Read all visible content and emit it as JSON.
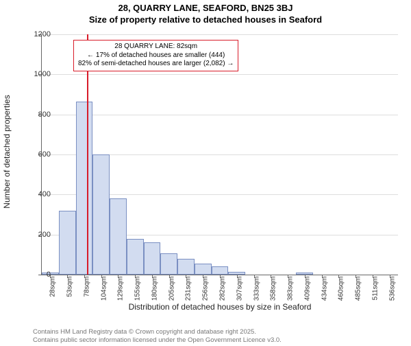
{
  "titles": {
    "main": "28, QUARRY LANE, SEAFORD, BN25 3BJ",
    "sub": "Size of property relative to detached houses in Seaford"
  },
  "axes": {
    "ylabel": "Number of detached properties",
    "xlabel": "Distribution of detached houses by size in Seaford",
    "ylim": [
      0,
      1200
    ],
    "ytick_step": 200,
    "grid_color": "#dddddd",
    "axis_color": "#666666"
  },
  "chart": {
    "type": "histogram",
    "bar_fill": "#d2dcf0",
    "bar_stroke": "#7a8fc2",
    "background_color": "#ffffff",
    "categories": [
      "28sqm",
      "53sqm",
      "78sqm",
      "104sqm",
      "129sqm",
      "155sqm",
      "180sqm",
      "205sqm",
      "231sqm",
      "256sqm",
      "282sqm",
      "307sqm",
      "333sqm",
      "358sqm",
      "383sqm",
      "409sqm",
      "434sqm",
      "460sqm",
      "485sqm",
      "511sqm",
      "536sqm"
    ],
    "values": [
      12,
      320,
      865,
      600,
      380,
      180,
      160,
      105,
      80,
      55,
      40,
      15,
      0,
      0,
      0,
      12,
      0,
      0,
      0,
      0,
      0
    ],
    "bar_gap_ratio": 0.0
  },
  "reference": {
    "value_sqm": 82,
    "color": "#d81b29",
    "annotation_lines": [
      "28 QUARRY LANE: 82sqm",
      "← 17% of detached houses are smaller (444)",
      "82% of semi-detached houses are larger (2,082) →"
    ]
  },
  "footer": {
    "line1": "Contains HM Land Registry data © Crown copyright and database right 2025.",
    "line2": "Contains public sector information licensed under the Open Government Licence v3.0."
  },
  "style": {
    "title_fontsize": 13,
    "axis_label_fontsize": 12,
    "tick_fontsize": 11,
    "xtick_fontsize": 10,
    "annotation_fontsize": 10,
    "footer_fontsize": 9.5
  }
}
